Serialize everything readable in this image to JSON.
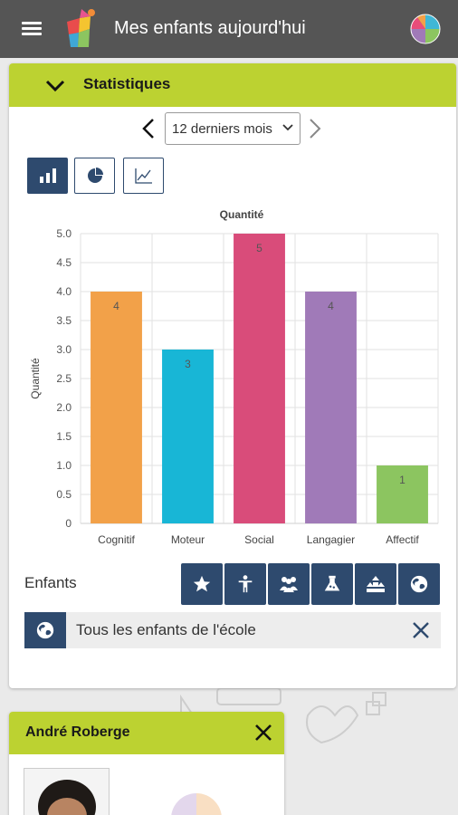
{
  "header": {
    "title": "Mes enfants aujourd'hui"
  },
  "stats": {
    "title": "Statistiques",
    "period_selected": "12 derniers mois",
    "chart_types": [
      "bar-chart-icon",
      "pie-chart-icon",
      "line-chart-icon"
    ],
    "filters_label": "Enfants",
    "filter_icons": [
      "star-icon",
      "child-icon",
      "group-icon",
      "beaker-icon",
      "stack-icon",
      "globe-icon"
    ],
    "selected_filter": "Tous les enfants de l'école"
  },
  "chart_data": {
    "type": "bar",
    "title": "Quantité",
    "ylabel": "Quantité",
    "xlabel": "",
    "categories": [
      "Cognitif",
      "Moteur",
      "Social",
      "Langagier",
      "Affectif"
    ],
    "values": [
      4,
      3,
      5,
      4,
      1
    ],
    "data_labels": [
      "4",
      "3",
      "5",
      "4",
      "1"
    ],
    "colors": [
      "#f2a149",
      "#18b6d6",
      "#d94c7a",
      "#a07ab8",
      "#8cc560"
    ],
    "ylim": [
      0,
      5
    ],
    "yticks": [
      "0",
      "0.5",
      "1.0",
      "1.5",
      "2.0",
      "2.5",
      "3.0",
      "3.5",
      "4.0",
      "4.5",
      "5.0"
    ],
    "grid": true,
    "legend": "none"
  },
  "child_card": {
    "name": "André Roberge"
  },
  "colors": {
    "appbar": "#555555",
    "accent": "#bcd231",
    "button": "#2e4a6e"
  }
}
